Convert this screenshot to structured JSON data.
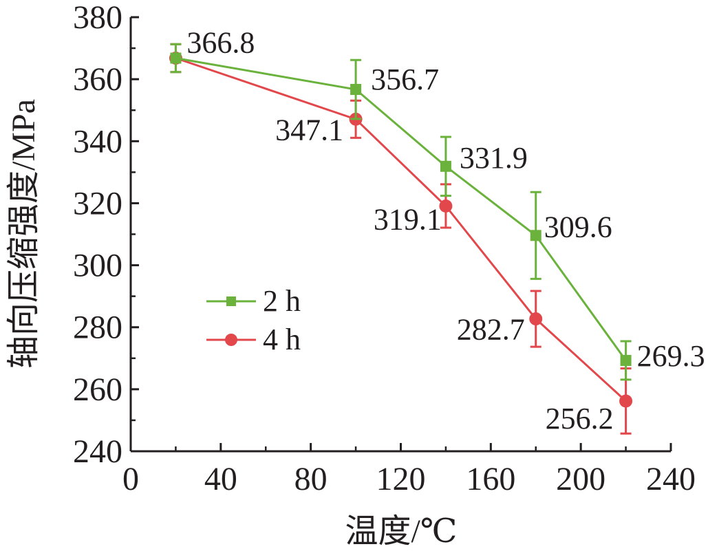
{
  "chart_data": {
    "type": "line",
    "xlabel": "温度/℃",
    "ylabel": "轴向压缩强度/MPa",
    "xlim": [
      0,
      240
    ],
    "ylim": [
      240,
      380
    ],
    "xticks": [
      "0",
      "40",
      "80",
      "120",
      "160",
      "200",
      "240"
    ],
    "yticks": [
      "240",
      "260",
      "280",
      "300",
      "320",
      "340",
      "360",
      "380"
    ],
    "grid": false,
    "legend_position": "middle-left",
    "x": [
      20,
      100,
      140,
      180,
      220
    ],
    "series": [
      {
        "name": "2 h",
        "color": "#6ab23c",
        "marker": "square",
        "values": [
          366.8,
          356.7,
          331.9,
          309.6,
          269.3
        ],
        "error": [
          4.5,
          9.5,
          9.5,
          14.0,
          6.2
        ],
        "labels": [
          "366.8",
          "356.7",
          "331.9",
          "309.6",
          "269.3"
        ]
      },
      {
        "name": "4 h",
        "color": "#e2474b",
        "marker": "circle",
        "values": [
          366.8,
          347.1,
          319.1,
          282.7,
          256.2
        ],
        "error": [
          4.5,
          6.0,
          7.0,
          9.0,
          10.5
        ],
        "labels": [
          "",
          "347.1",
          "319.1",
          "282.7",
          "256.2"
        ]
      }
    ]
  }
}
